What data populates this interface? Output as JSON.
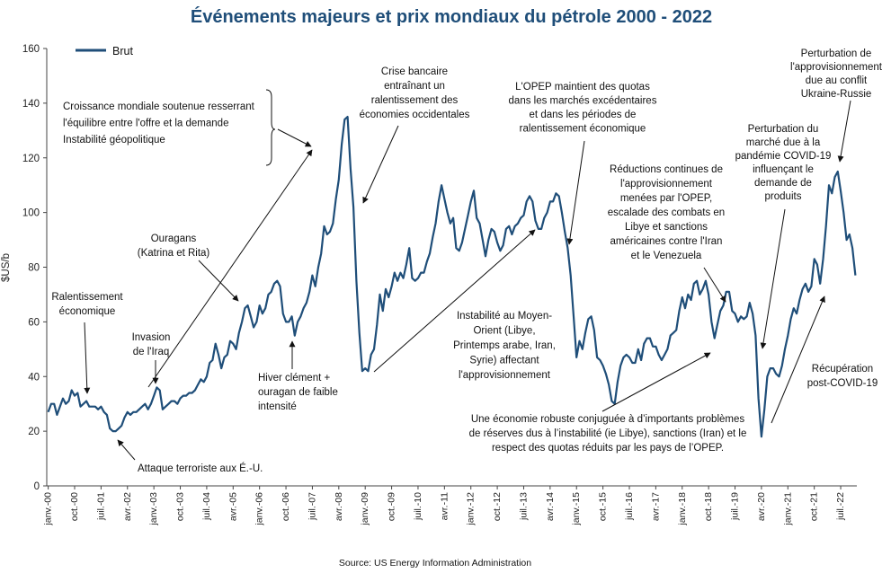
{
  "chart_data": {
    "type": "line",
    "title": "Événements majeurs et prix mondiaux du pétrole 2000 - 2022",
    "ylabel": "$US/b",
    "xlabel": "",
    "ylim": [
      0,
      160
    ],
    "yticks": [
      0,
      20,
      40,
      60,
      80,
      100,
      120,
      140,
      160
    ],
    "xticks": [
      "janv.-00",
      "oct.-00",
      "juil.-01",
      "avr.-02",
      "janv.-03",
      "oct.-03",
      "juil.-04",
      "avr.-05",
      "janv.-06",
      "oct.-06",
      "juil.-07",
      "avr.-08",
      "janv.-09",
      "oct.-09",
      "juil.-10",
      "avr.-11",
      "janv.-12",
      "oct.-12",
      "juil.-13",
      "avr.-14",
      "janv.-15",
      "oct.-15",
      "juil.-16",
      "avr.-17",
      "janv.-18",
      "oct.-18",
      "juil.-19",
      "avr.-20",
      "janv.-21",
      "oct.-21",
      "juil.-22"
    ],
    "grid": false,
    "legend_position": "top-left",
    "source": "Source: US Energy Information Administration",
    "series": [
      {
        "name": "Brut",
        "color": "#1f4e79",
        "start": "2000-01",
        "frequency": "monthly",
        "values": [
          27,
          30,
          30,
          26,
          29,
          32,
          30,
          31,
          35,
          33,
          34,
          29,
          30,
          31,
          29,
          29,
          29,
          28,
          29,
          27,
          26,
          21,
          20,
          20,
          21,
          22,
          25,
          27,
          26,
          27,
          27,
          28,
          29,
          30,
          28,
          30,
          33,
          36,
          35,
          28,
          29,
          30,
          31,
          31,
          30,
          32,
          33,
          33,
          34,
          34,
          35,
          37,
          39,
          38,
          40,
          45,
          46,
          52,
          48,
          43,
          47,
          48,
          53,
          52,
          50,
          56,
          60,
          65,
          66,
          62,
          58,
          60,
          66,
          63,
          65,
          70,
          71,
          74,
          75,
          73,
          63,
          60,
          60,
          62,
          55,
          60,
          62,
          65,
          67,
          71,
          77,
          73,
          80,
          85,
          95,
          92,
          93,
          96,
          105,
          112,
          125,
          134,
          135,
          116,
          102,
          75,
          56,
          42,
          43,
          42,
          48,
          50,
          59,
          70,
          64,
          72,
          69,
          73,
          78,
          75,
          78,
          76,
          81,
          87,
          76,
          75,
          76,
          78,
          78,
          82,
          85,
          91,
          96,
          104,
          110,
          105,
          100,
          96,
          98,
          87,
          86,
          89,
          94,
          99,
          104,
          108,
          98,
          96,
          90,
          84,
          90,
          94,
          93,
          89,
          86,
          88,
          94,
          95,
          92,
          95,
          96,
          98,
          99,
          104,
          106,
          104,
          97,
          94,
          94,
          98,
          100,
          104,
          104,
          107,
          106,
          100,
          93,
          87,
          77,
          62,
          47,
          53,
          50,
          56,
          61,
          62,
          57,
          47,
          46,
          44,
          41,
          37,
          31,
          30,
          38,
          44,
          47,
          48,
          47,
          45,
          45,
          50,
          46,
          52,
          54,
          54,
          51,
          51,
          48,
          46,
          48,
          50,
          55,
          56,
          57,
          64,
          69,
          65,
          70,
          68,
          74,
          75,
          70,
          72,
          75,
          70,
          60,
          54,
          59,
          64,
          66,
          71,
          71,
          64,
          63,
          60,
          62,
          61,
          62,
          67,
          63,
          55,
          32,
          18,
          28,
          40,
          43,
          43,
          41,
          40,
          44,
          50,
          55,
          61,
          65,
          63,
          68,
          72,
          74,
          71,
          73,
          83,
          81,
          74,
          83,
          95,
          110,
          107,
          113,
          115,
          108,
          100,
          90,
          92,
          87,
          77
        ]
      }
    ],
    "annotations": [
      {
        "lines": [
          "Croissance mondiale soutenue resserrant",
          "l'équilibre entre l'offre et la demande",
          "Instabilité géopolitique"
        ]
      },
      {
        "lines": [
          "Crise bancaire",
          "entraînant un",
          "ralentissement des",
          "économies occidentales"
        ]
      },
      {
        "lines": [
          "L'OPEP maintient des quotas",
          "dans les marchés excédentaires",
          "et dans les périodes de",
          "ralentissement économique"
        ]
      },
      {
        "lines": [
          "Perturbation de",
          "l'approvisionnement",
          "due au conflit",
          "Ukraine-Russie"
        ]
      },
      {
        "lines": [
          "Perturbation du",
          "marché due à la",
          "pandémie COVID-19",
          "influençant le",
          "demande de",
          "produits"
        ]
      },
      {
        "lines": [
          "Réductions continues de",
          "l'approvisionnement",
          "menées par l'OPEP,",
          "escalade des combats en",
          "Libye et sanctions",
          "américaines contre l'Iran",
          "et le Venezuela"
        ]
      },
      {
        "lines": [
          "Ouragans",
          "(Katrina et Rita)"
        ]
      },
      {
        "lines": [
          "Ralentissement",
          "économique"
        ]
      },
      {
        "lines": [
          "Invasion",
          "de l'Iraq"
        ]
      },
      {
        "lines": [
          "Hiver clément +",
          "ouragan de faible",
          "intensité"
        ]
      },
      {
        "lines": [
          "Instabilité au Moyen-",
          "Orient (Libye,",
          "Printemps arabe, Iran,",
          "Syrie) affectant",
          "l'approvisionnement"
        ]
      },
      {
        "lines": [
          "Une économie robuste conjuguée à d’importants problèmes",
          "de réserves dus à l’instabilité (ie Libye), sanctions (Iran) et le",
          "respect des quotas réduits par les pays de l’OPEP."
        ]
      },
      {
        "lines": [
          "Récupération",
          "post-COVID-19"
        ]
      },
      {
        "lines": [
          "Attaque terroriste aux É.-U."
        ]
      }
    ]
  }
}
